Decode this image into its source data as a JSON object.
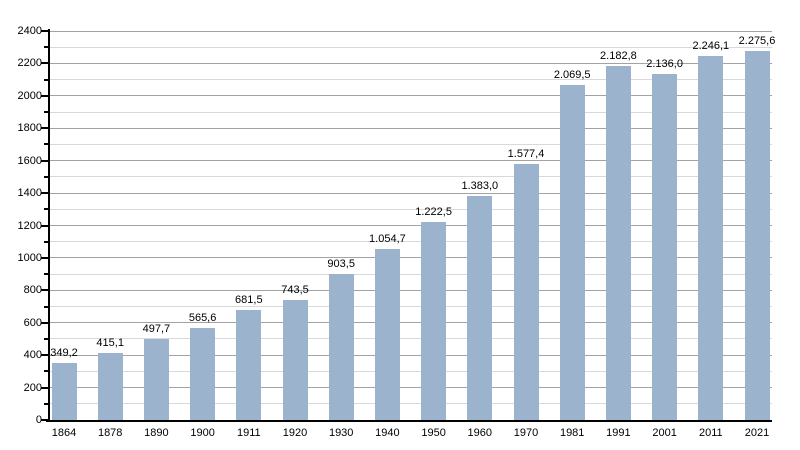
{
  "chart_data": {
    "type": "bar",
    "title": "",
    "xlabel": "",
    "ylabel": "",
    "categories": [
      "1864",
      "1878",
      "1890",
      "1900",
      "1911",
      "1920",
      "1930",
      "1940",
      "1950",
      "1960",
      "1970",
      "1981",
      "1991",
      "2001",
      "2011",
      "2021"
    ],
    "values": [
      349.2,
      415.1,
      497.7,
      565.6,
      681.5,
      743.5,
      903.5,
      1054.7,
      1222.5,
      1383.0,
      1577.4,
      2069.5,
      2182.8,
      2136.0,
      2246.1,
      2275.6
    ],
    "value_labels": [
      "349,2",
      "415,1",
      "497,7",
      "565,6",
      "681,5",
      "743,5",
      "903,5",
      "1.054,7",
      "1.222,5",
      "1.383,0",
      "1.577,4",
      "2.069,5",
      "2.182,8",
      "2.136,0",
      "2.246,1",
      "2.275,6"
    ],
    "ylim": [
      0,
      2400
    ],
    "y_major_step": 200,
    "y_minor_step": 100,
    "y_tick_labels": [
      "0",
      "200",
      "400",
      "600",
      "800",
      "1000",
      "1200",
      "1400",
      "1600",
      "1800",
      "2000",
      "2200",
      "2400"
    ],
    "grid": true,
    "legend": false
  },
  "colors": {
    "bar": "#9cb3ce",
    "grid_major": "#a3a3a3",
    "grid_minor": "#d9d9d9",
    "axis": "#000000",
    "text": "#000000",
    "background": "#ffffff"
  }
}
